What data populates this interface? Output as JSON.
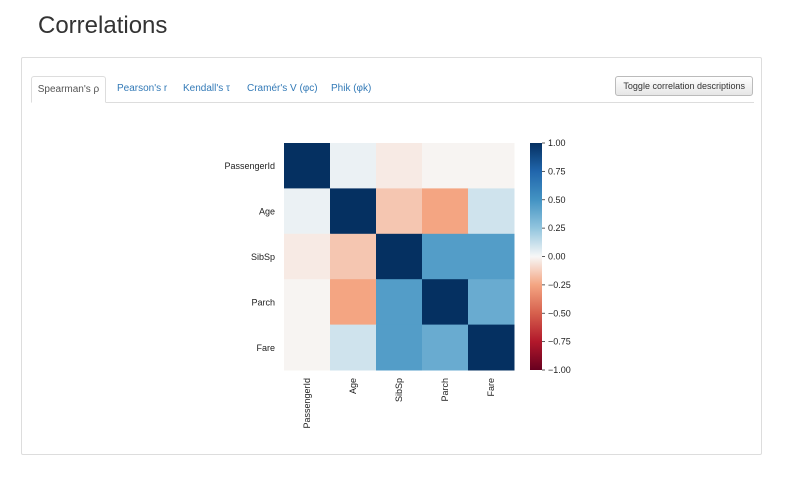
{
  "page": {
    "title": "Correlations"
  },
  "tabs": [
    {
      "label": "Spearman's ρ",
      "active": true
    },
    {
      "label": "Pearson's r",
      "active": false
    },
    {
      "label": "Kendall's τ",
      "active": false
    },
    {
      "label": "Cramér's V (φc)",
      "active": false
    },
    {
      "label": "Phik (φk)",
      "active": false
    }
  ],
  "toggle_button": "Toggle correlation descriptions",
  "colors": {
    "positive": "#053061",
    "neutral": "#f7f7f7",
    "negative": "#67001f",
    "link": "#337ab7"
  },
  "chart_data": {
    "type": "heatmap",
    "variables": [
      "PassengerId",
      "Age",
      "SibSp",
      "Parch",
      "Fare"
    ],
    "matrix": [
      [
        1.0,
        0.03,
        -0.04,
        -0.01,
        -0.01
      ],
      [
        0.03,
        1.0,
        -0.15,
        -0.25,
        0.1
      ],
      [
        -0.04,
        -0.15,
        1.0,
        0.45,
        0.45
      ],
      [
        -0.01,
        -0.25,
        0.45,
        1.0,
        0.38
      ],
      [
        -0.01,
        0.1,
        0.45,
        0.38,
        1.0
      ]
    ],
    "colorbar": {
      "range": [
        -1.0,
        1.0
      ],
      "ticks": [
        "1.00",
        "0.75",
        "0.50",
        "0.25",
        "0.00",
        "−0.25",
        "−0.50",
        "−0.75",
        "−1.00"
      ]
    }
  }
}
